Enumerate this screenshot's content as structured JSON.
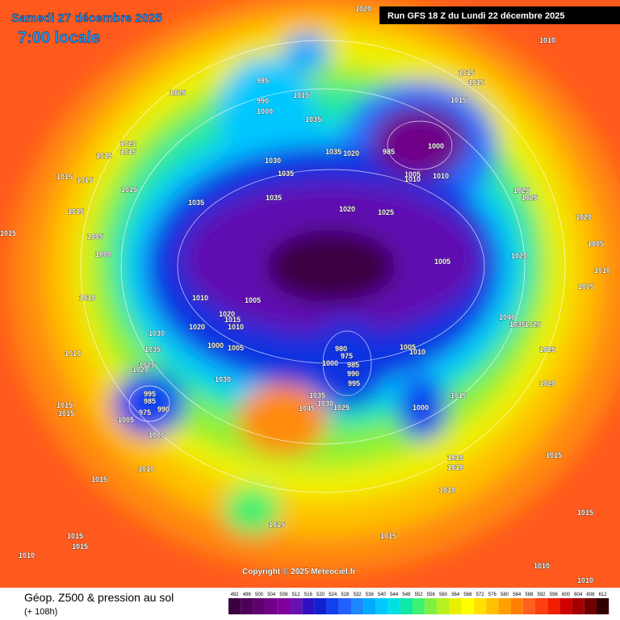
{
  "header": {
    "date": "Samedi 27 décembre 2025",
    "time": "7:00 locale",
    "run": "Run GFS 18 Z du Lundi 22 décembre 2025"
  },
  "footer": {
    "title": "Géop. Z500 & pression au sol",
    "lead": "(+ 108h)",
    "copyright": "Copyright © 2025 Meteociel.fr"
  },
  "legend": {
    "values": [
      492,
      496,
      500,
      504,
      508,
      512,
      516,
      520,
      524,
      528,
      532,
      536,
      540,
      544,
      548,
      552,
      556,
      560,
      564,
      568,
      572,
      576,
      580,
      584,
      588,
      592,
      596,
      600,
      604,
      608,
      612
    ],
    "colors": [
      "#3a0040",
      "#4c0058",
      "#5e0070",
      "#700088",
      "#80009c",
      "#6a10b0",
      "#3010c0",
      "#1020d0",
      "#1040f0",
      "#2060ff",
      "#2088ff",
      "#00aaff",
      "#00c8ff",
      "#00e0e0",
      "#10e8a8",
      "#40f070",
      "#80f040",
      "#b8f020",
      "#e8f000",
      "#ffff00",
      "#ffe000",
      "#ffc000",
      "#ffa000",
      "#ff8000",
      "#ff6020",
      "#ff4010",
      "#f02000",
      "#d00000",
      "#a00000",
      "#700000",
      "#300000"
    ]
  },
  "isobar_labels": [
    1020,
    1010,
    1015,
    1015,
    1025,
    985,
    990,
    1000,
    1015,
    1035,
    1015,
    1020,
    1015,
    1015,
    1015,
    1015,
    1015,
    1015,
    1035,
    1030,
    1035,
    1035,
    1035,
    1020,
    985,
    1000,
    1005,
    1010,
    1010,
    1020,
    1025,
    1025,
    1025,
    1020,
    1005,
    1000,
    1015,
    1005,
    1020,
    1005,
    1010,
    1005,
    1010,
    1010,
    1005,
    1020,
    1015,
    1010,
    1020,
    1030,
    1035,
    1010,
    1000,
    1005,
    980,
    975,
    1000,
    985,
    990,
    995,
    1005,
    1010,
    1040,
    1035,
    1025,
    1025,
    1020,
    1025,
    1020,
    1030,
    995,
    985,
    975,
    990,
    1005,
    1000,
    1015,
    1015,
    1035,
    1030,
    1045,
    1025,
    1015,
    1000,
    1010,
    1010,
    1010,
    1015,
    1010,
    1015,
    1015,
    1015,
    1015,
    1015,
    1015,
    1010,
    1010,
    1010
  ]
}
